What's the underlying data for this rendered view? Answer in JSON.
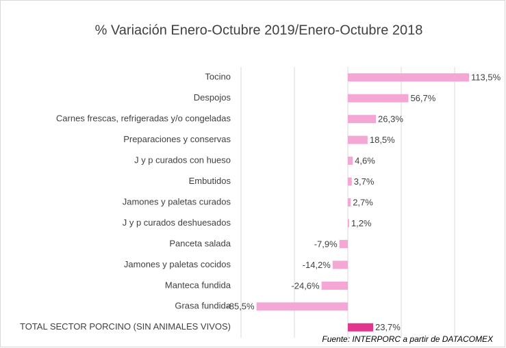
{
  "chart_data": {
    "type": "hbar",
    "title": "% Variación Enero-Octubre 2019/Enero-Octubre 2018",
    "categories": [
      "Tocino",
      "Despojos",
      "Carnes frescas, refrigeradas y/o congeladas",
      "Preparaciones y conservas",
      "J y p curados con hueso",
      "Embutidos",
      "Jamones y paletas curados",
      "J y p curados deshuesados",
      "Panceta salada",
      "Jamones y paletas cocidos",
      "Manteca fundida",
      "Grasa fundida",
      "TOTAL SECTOR PORCINO (SIN ANIMALES VIVOS)"
    ],
    "values": [
      113.5,
      56.7,
      26.3,
      18.5,
      4.6,
      3.7,
      2.7,
      1.2,
      -7.9,
      -14.2,
      -24.6,
      -85.5,
      23.7
    ],
    "value_labels": [
      "113,5%",
      "56,7%",
      "26,3%",
      "18,5%",
      "4,6%",
      "3,7%",
      "2,7%",
      "1,2%",
      "-7,9%",
      "-14,2%",
      "-24,6%",
      "-85,5%",
      "23,7%"
    ],
    "colors": [
      "#f4a7d5",
      "#f4a7d5",
      "#f4a7d5",
      "#f4a7d5",
      "#f4a7d5",
      "#f4a7d5",
      "#f4a7d5",
      "#f4a7d5",
      "#f4a7d5",
      "#f4a7d5",
      "#f4a7d5",
      "#f4a7d5",
      "#e2378f"
    ],
    "xlim": [
      -100,
      150
    ],
    "xticks": [
      -100,
      -50,
      0,
      50,
      100
    ],
    "grid": true,
    "source": "Fuente: INTERPORC  a partir de DATACOMEX"
  }
}
